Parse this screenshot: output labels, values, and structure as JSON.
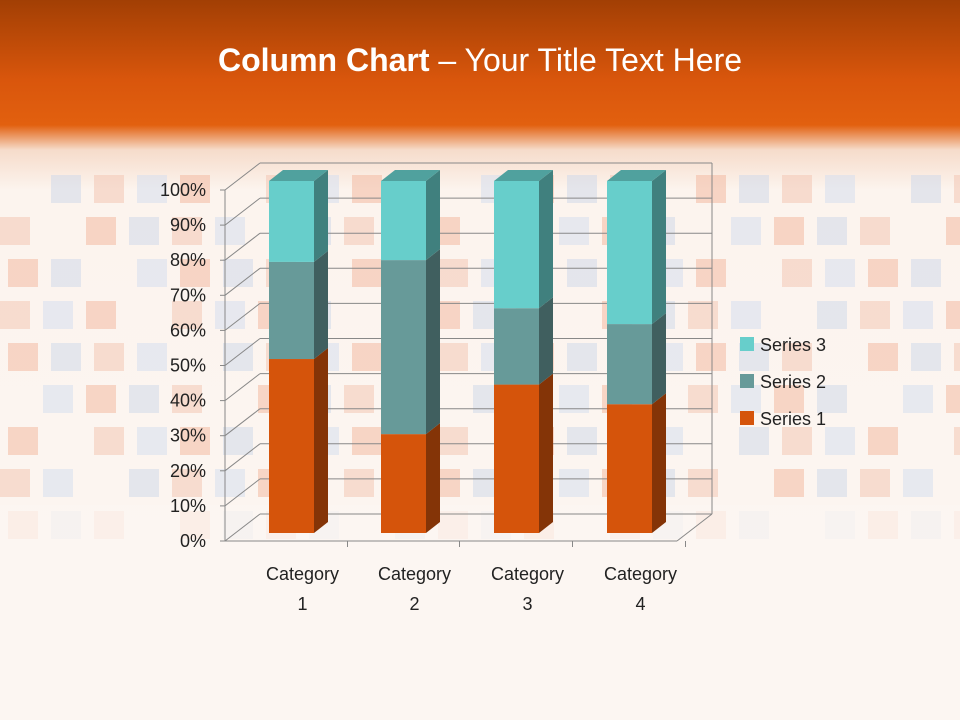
{
  "slide": {
    "title_bold": "Column Chart",
    "title_rest": " – Your Title Text Here"
  },
  "chart_data": {
    "type": "bar",
    "stacking": "percent",
    "style": "3d-stacked-column-100",
    "categories": [
      [
        "Category",
        "1"
      ],
      [
        "Category",
        "2"
      ],
      [
        "Category",
        "3"
      ],
      [
        "Category",
        "4"
      ]
    ],
    "series": [
      {
        "name": "Series 1",
        "values": [
          4.3,
          2.5,
          3.5,
          4.5
        ],
        "color": "#d5540b"
      },
      {
        "name": "Series 2",
        "values": [
          2.4,
          4.4,
          1.8,
          2.8
        ],
        "color": "#679a99"
      },
      {
        "name": "Series 3",
        "values": [
          2,
          2,
          3,
          5
        ],
        "color": "#67cecb"
      }
    ],
    "yticks": [
      "0%",
      "10%",
      "20%",
      "30%",
      "40%",
      "50%",
      "60%",
      "70%",
      "80%",
      "90%",
      "100%"
    ],
    "ylim": [
      0,
      100
    ],
    "grid": true,
    "legend": "right"
  }
}
